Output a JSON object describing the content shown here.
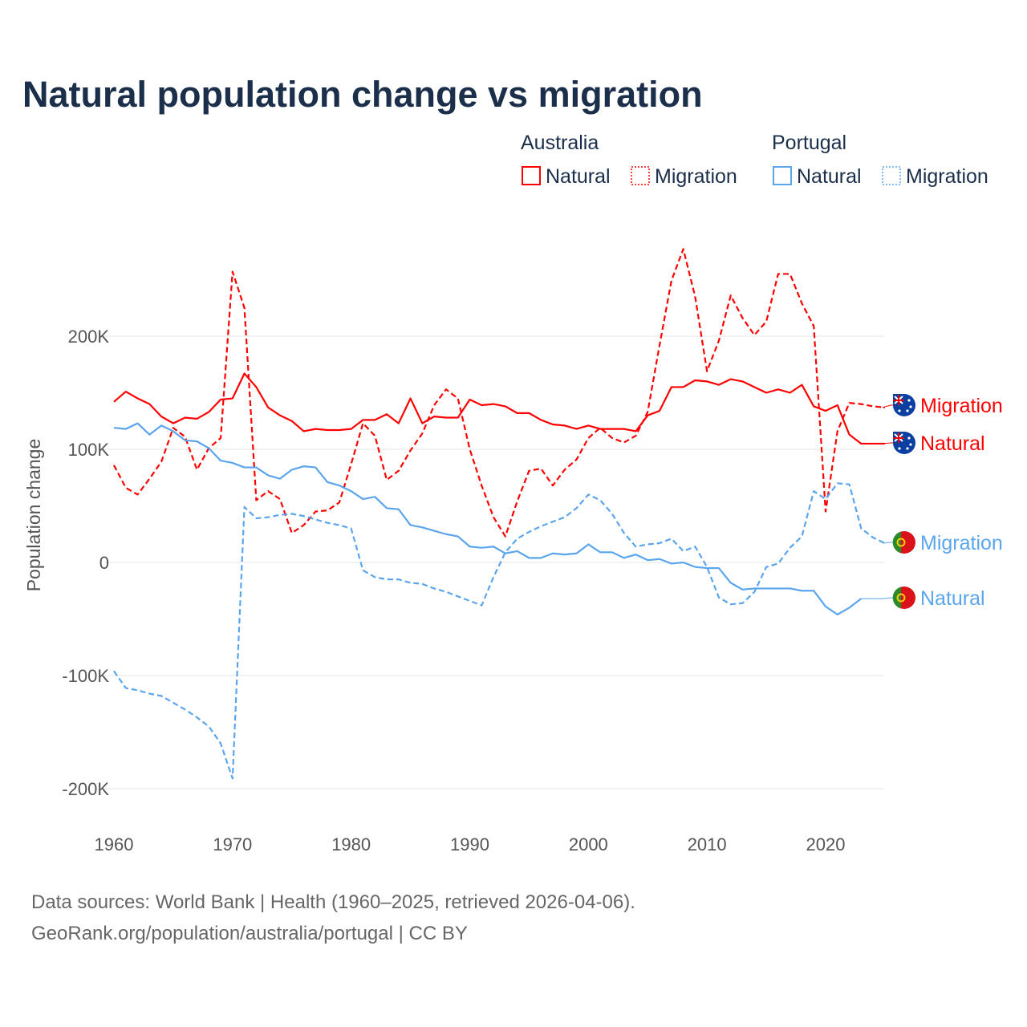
{
  "title": "Natural population change vs migration",
  "legend": {
    "groups": [
      {
        "name": "Australia",
        "items": [
          "Natural",
          "Migration"
        ],
        "color": "#ff0000"
      },
      {
        "name": "Portugal",
        "items": [
          "Natural",
          "Migration"
        ],
        "color": "#5aa5ec"
      }
    ]
  },
  "source": {
    "line1": "Data sources: World Bank | Health (1960–2025, retrieved 2026-04-06).",
    "line2": "GeoRank.org/population/australia/portugal | CC BY"
  },
  "chart_data": {
    "type": "line",
    "title": "Natural population change vs migration",
    "xlabel": "",
    "ylabel": "Population change",
    "xlim": [
      1960,
      2025
    ],
    "ylim": [
      -200000,
      280000
    ],
    "xticks": [
      1960,
      1970,
      1980,
      1990,
      2000,
      2010,
      2020
    ],
    "xtick_labels": [
      "1960",
      "1970",
      "1980",
      "1990",
      "2000",
      "2010",
      "2020"
    ],
    "yticks": [
      -200000,
      -100000,
      0,
      100000,
      200000
    ],
    "ytick_labels": [
      "-200K",
      "-100K",
      "0",
      "100K",
      "200K"
    ],
    "grid": true,
    "legend_position": "top-right",
    "start_year": 1960,
    "series": [
      {
        "name": "Australia Natural",
        "label": "Natural",
        "color": "#ff0000",
        "dash": false,
        "values_k": [
          142,
          151,
          145,
          140,
          129,
          123,
          128,
          127,
          133,
          144,
          145,
          167,
          155,
          137,
          130,
          125,
          116,
          118,
          117,
          117,
          118,
          126,
          126,
          131,
          123,
          145,
          123,
          129,
          128,
          128,
          144,
          139,
          140,
          138,
          132,
          132,
          126,
          122,
          121,
          118,
          121,
          118,
          118,
          118,
          116,
          130,
          134,
          155,
          155,
          161,
          160,
          157,
          162,
          160,
          155,
          150,
          153,
          150,
          157,
          138,
          134,
          139,
          113,
          105,
          105,
          105
        ]
      },
      {
        "name": "Australia Migration",
        "label": "Migration",
        "color": "#ff0000",
        "dash": true,
        "values_k": [
          86,
          66,
          60,
          74,
          89,
          119,
          111,
          82,
          101,
          110,
          257,
          225,
          55,
          63,
          56,
          26,
          33,
          45,
          46,
          53,
          87,
          123,
          112,
          73,
          81,
          99,
          114,
          139,
          153,
          145,
          100,
          68,
          40,
          23,
          54,
          81,
          83,
          68,
          82,
          91,
          110,
          119,
          110,
          106,
          112,
          133,
          192,
          249,
          277,
          235,
          169,
          196,
          236,
          216,
          201,
          213,
          255,
          255,
          229,
          209,
          45,
          116,
          141,
          140,
          138,
          137
        ]
      },
      {
        "name": "Portugal Natural",
        "label": "Natural",
        "color": "#5aa5ec",
        "dash": false,
        "values_k": [
          119,
          118,
          123,
          113,
          121,
          116,
          108,
          107,
          101,
          90,
          88,
          84,
          84,
          77,
          74,
          82,
          85,
          84,
          71,
          68,
          63,
          56,
          58,
          48,
          47,
          33,
          31,
          28,
          25,
          23,
          14,
          13,
          14,
          8,
          10,
          4,
          4,
          8,
          7,
          8,
          16,
          9,
          9,
          4,
          7,
          2,
          3,
          -1,
          0,
          -4,
          -5,
          -5,
          -18,
          -24,
          -23,
          -23,
          -23,
          -23,
          -25,
          -25,
          -39,
          -46,
          -40,
          -32
        ]
      },
      {
        "name": "Portugal Migration",
        "label": "Migration",
        "color": "#5aa5ec",
        "dash": true,
        "values_k": [
          -96,
          -111,
          -113,
          -116,
          -118,
          -124,
          -130,
          -137,
          -145,
          -160,
          -191,
          49,
          39,
          40,
          42,
          43,
          41,
          38,
          35,
          33,
          30,
          -7,
          -13,
          -15,
          -15,
          -18,
          -19,
          -23,
          -26,
          -30,
          -34,
          -38,
          -13,
          9,
          21,
          27,
          32,
          36,
          40,
          48,
          60,
          55,
          43,
          26,
          14,
          16,
          17,
          21,
          10,
          14,
          -4,
          -31,
          -37,
          -36,
          -26,
          -4,
          -1,
          13,
          23,
          63,
          56,
          70,
          69,
          30,
          22,
          17
        ]
      }
    ]
  }
}
